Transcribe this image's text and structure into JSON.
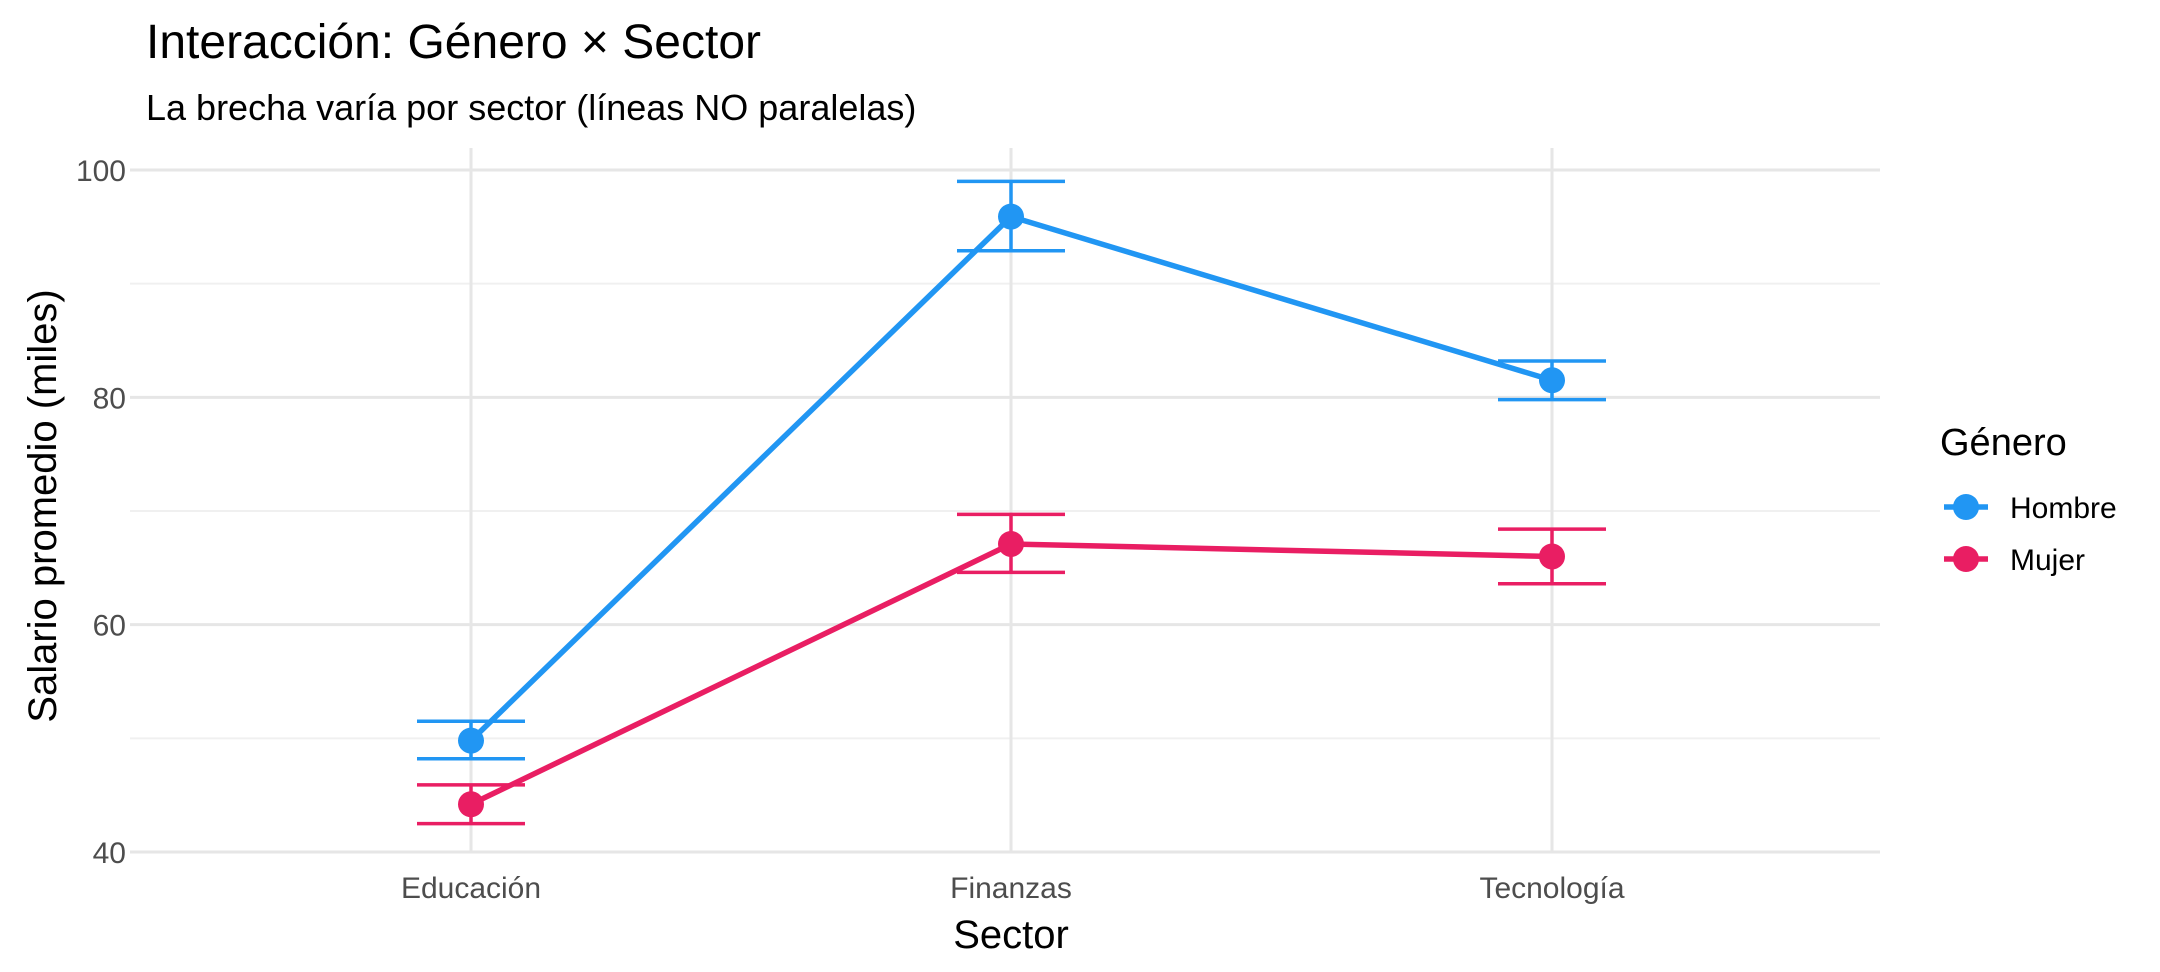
{
  "chart_data": {
    "type": "line",
    "title": "Interacción: Género × Sector",
    "subtitle": "La brecha varía por sector (líneas NO paralelas)",
    "xlabel": "Sector",
    "ylabel": "Salario promedio (miles)",
    "categories": [
      "Educación",
      "Finanzas",
      "Tecnología"
    ],
    "ylim": [
      40,
      100
    ],
    "yticks": [
      40,
      60,
      80,
      100
    ],
    "grid": true,
    "legend": {
      "title": "Género",
      "position": "right"
    },
    "series": [
      {
        "name": "Hombre",
        "color": "#2196F3",
        "values": [
          49.8,
          95.9,
          81.5
        ],
        "error_low": [
          48.2,
          92.9,
          79.8
        ],
        "error_high": [
          51.5,
          99.0,
          83.2
        ]
      },
      {
        "name": "Mujer",
        "color": "#E91E63",
        "values": [
          44.2,
          67.1,
          66.0
        ],
        "error_low": [
          42.5,
          64.6,
          63.6
        ],
        "error_high": [
          45.9,
          69.7,
          68.4
        ]
      }
    ]
  }
}
